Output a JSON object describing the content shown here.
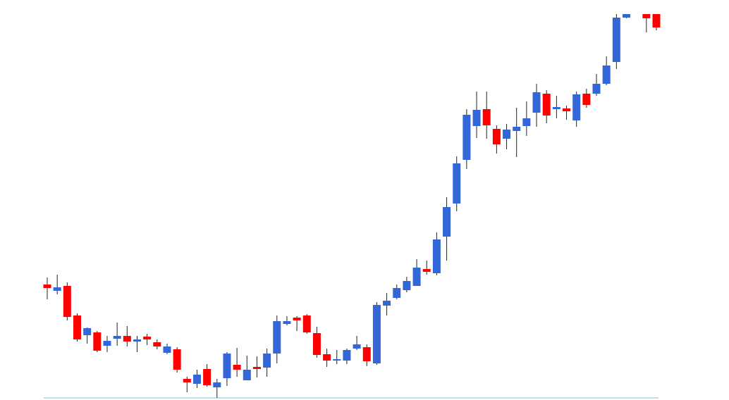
{
  "chart_data": {
    "type": "candlestick",
    "up_color": "#3366d6",
    "down_color": "#ff0000",
    "ylim": [
      0,
      545
    ],
    "open": [
      161,
      152,
      159,
      117,
      89,
      93,
      74,
      84,
      88,
      80,
      87,
      79,
      64,
      69,
      27,
      20,
      41,
      15,
      28,
      47,
      25,
      44,
      43,
      63,
      105,
      114,
      117,
      92,
      62,
      53,
      53,
      70,
      72,
      49,
      131,
      142,
      153,
      159,
      183,
      177,
      229,
      276,
      338,
      386,
      410,
      382,
      368,
      379,
      386,
      405,
      432,
      410,
      411,
      394,
      432,
      432,
      446,
      477,
      540,
      null,
      545,
      545
    ],
    "high": [
      171,
      175,
      164,
      120,
      100,
      95,
      88,
      107,
      102,
      88,
      91,
      83,
      77,
      72,
      30,
      40,
      48,
      27,
      65,
      71,
      60,
      59,
      70,
      117,
      116,
      116,
      119,
      101,
      70,
      68,
      70,
      88,
      76,
      136,
      149,
      161,
      172,
      197,
      195,
      235,
      285,
      343,
      410,
      435,
      435,
      387,
      389,
      412,
      421,
      446,
      437,
      429,
      415,
      435,
      439,
      460,
      485,
      545,
      545,
      null,
      545,
      545
    ],
    "low": [
      140,
      147,
      110,
      80,
      77,
      65,
      65,
      74,
      73,
      65,
      75,
      69,
      62,
      36,
      8,
      14,
      16,
      0,
      17,
      30,
      25,
      29,
      30,
      49,
      103,
      95,
      91,
      57,
      44,
      48,
      48,
      68,
      45,
      47,
      117,
      140,
      150,
      159,
      175,
      174,
      195,
      265,
      325,
      369,
      368,
      347,
      353,
      342,
      372,
      385,
      390,
      397,
      395,
      385,
      412,
      429,
      444,
      467,
      539,
      null,
      519,
      522
    ],
    "close": [
      156,
      157,
      115,
      83,
      99,
      67,
      81,
      88,
      80,
      83,
      83,
      73,
      73,
      40,
      22,
      33,
      18,
      22,
      63,
      40,
      40,
      41,
      63,
      109,
      109,
      110,
      93,
      61,
      53,
      55,
      68,
      76,
      52,
      132,
      138,
      156,
      166,
      185,
      179,
      225,
      271,
      333,
      402,
      409,
      387,
      360,
      381,
      385,
      397,
      434,
      401,
      413,
      407,
      431,
      416,
      446,
      472,
      540,
      545,
      null,
      539,
      526
    ]
  }
}
